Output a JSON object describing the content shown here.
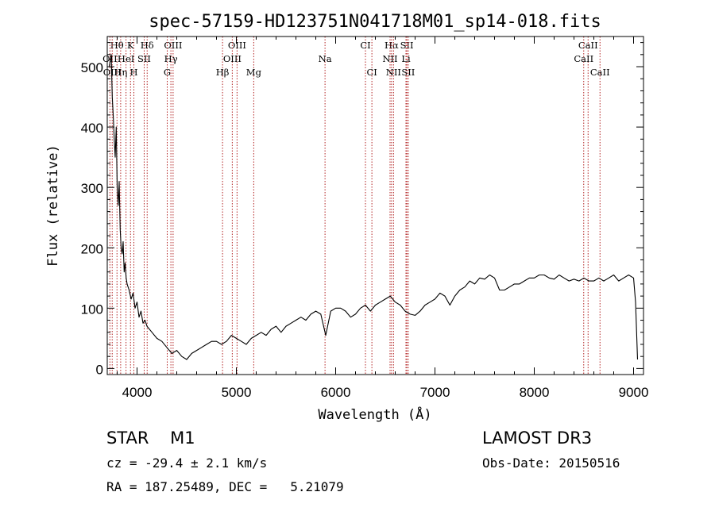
{
  "chart_data": {
    "type": "line",
    "title": "spec-57159-HD123751N041718M01_sp14-018.fits",
    "xlabel": "Wavelength (Å)",
    "ylabel": "Flux (relative)",
    "xlim": [
      3700,
      9100
    ],
    "ylim": [
      -10,
      550
    ],
    "xticks": [
      4000,
      5000,
      6000,
      7000,
      8000,
      9000
    ],
    "yticks": [
      0,
      100,
      200,
      300,
      400,
      500
    ],
    "grid": false,
    "legend": "none",
    "series": [
      {
        "x": [
          3720,
          3740,
          3750,
          3760,
          3770,
          3780,
          3790,
          3800,
          3810,
          3820,
          3830,
          3840,
          3850,
          3860,
          3870,
          3880,
          3890,
          3900,
          3920,
          3940,
          3960,
          3980,
          4000,
          4020,
          4040,
          4060,
          4080,
          4100,
          4150,
          4200,
          4250,
          4300,
          4350,
          4400,
          4450,
          4500,
          4550,
          4600,
          4650,
          4700,
          4750,
          4800,
          4850,
          4900,
          4950,
          5000,
          5050,
          5100,
          5150,
          5200,
          5250,
          5300,
          5350,
          5400,
          5450,
          5500,
          5550,
          5600,
          5650,
          5700,
          5750,
          5800,
          5850,
          5900,
          5950,
          6000,
          6050,
          6100,
          6150,
          6200,
          6250,
          6300,
          6350,
          6400,
          6450,
          6500,
          6550,
          6600,
          6650,
          6700,
          6750,
          6800,
          6850,
          6900,
          6950,
          7000,
          7050,
          7100,
          7150,
          7200,
          7250,
          7300,
          7350,
          7400,
          7450,
          7500,
          7550,
          7600,
          7650,
          7700,
          7750,
          7800,
          7850,
          7900,
          7950,
          8000,
          8050,
          8100,
          8150,
          8200,
          8250,
          8300,
          8350,
          8400,
          8450,
          8500,
          8550,
          8600,
          8650,
          8700,
          8750,
          8800,
          8850,
          8900,
          8950,
          9000,
          9020,
          9040
        ],
        "y": [
          500,
          520,
          450,
          420,
          380,
          350,
          400,
          300,
          270,
          310,
          230,
          200,
          190,
          210,
          160,
          175,
          150,
          140,
          130,
          115,
          125,
          100,
          110,
          85,
          95,
          75,
          80,
          70,
          60,
          50,
          45,
          35,
          25,
          30,
          20,
          15,
          25,
          30,
          35,
          40,
          45,
          45,
          40,
          45,
          55,
          50,
          45,
          40,
          50,
          55,
          60,
          55,
          65,
          70,
          60,
          70,
          75,
          80,
          85,
          80,
          90,
          95,
          90,
          55,
          95,
          100,
          100,
          95,
          85,
          90,
          100,
          105,
          95,
          105,
          110,
          115,
          120,
          110,
          105,
          95,
          90,
          88,
          95,
          105,
          110,
          115,
          125,
          120,
          105,
          120,
          130,
          135,
          145,
          140,
          150,
          148,
          155,
          150,
          130,
          130,
          135,
          140,
          140,
          145,
          150,
          150,
          155,
          155,
          150,
          148,
          155,
          150,
          145,
          148,
          145,
          150,
          145,
          145,
          150,
          145,
          150,
          155,
          145,
          150,
          155,
          150,
          110,
          15
        ]
      }
    ],
    "line_markers": [
      {
        "name": "Hθ",
        "x": 3798,
        "row": 0
      },
      {
        "name": "K",
        "x": 3934,
        "row": 0
      },
      {
        "name": "Hδ",
        "x": 4102,
        "row": 0
      },
      {
        "name": "OIII",
        "x": 4363,
        "row": 0
      },
      {
        "name": "OIII",
        "x": 5007,
        "row": 0
      },
      {
        "name": "CI",
        "x": 6300,
        "row": 0
      },
      {
        "name": "Hα",
        "x": 6563,
        "row": 0
      },
      {
        "name": "SII",
        "x": 6717,
        "row": 0
      },
      {
        "name": "CaII",
        "x": 8542,
        "row": 0
      },
      {
        "name": "OII",
        "x": 3727,
        "row": 1
      },
      {
        "name": "HeI",
        "x": 3889,
        "row": 1
      },
      {
        "name": "SII",
        "x": 4072,
        "row": 1
      },
      {
        "name": "Hγ",
        "x": 4341,
        "row": 1
      },
      {
        "name": "OIII",
        "x": 4959,
        "row": 1
      },
      {
        "name": "Na",
        "x": 5893,
        "row": 1
      },
      {
        "name": "NII",
        "x": 6548,
        "row": 1
      },
      {
        "name": "Li",
        "x": 6708,
        "row": 1
      },
      {
        "name": "CaII",
        "x": 8498,
        "row": 1
      },
      {
        "name": "OIII",
        "x": 3750,
        "row": 2
      },
      {
        "name": "Hη",
        "x": 3835,
        "row": 2
      },
      {
        "name": "H",
        "x": 3968,
        "row": 2
      },
      {
        "name": "G",
        "x": 4304,
        "row": 2
      },
      {
        "name": "Hβ",
        "x": 4861,
        "row": 2
      },
      {
        "name": "Mg",
        "x": 5175,
        "row": 2
      },
      {
        "name": "CI",
        "x": 6365,
        "row": 2
      },
      {
        "name": "NII",
        "x": 6583,
        "row": 2
      },
      {
        "name": "SII",
        "x": 6731,
        "row": 2
      },
      {
        "name": "CaII",
        "x": 8662,
        "row": 2
      }
    ]
  },
  "info": {
    "class": "STAR    M1",
    "survey": "LAMOST DR3",
    "cz": "cz = -29.4 ± 2.1 km/s",
    "obs_date": "Obs-Date: 20150516",
    "radec": "RA = 187.25489, DEC =   5.21079"
  }
}
